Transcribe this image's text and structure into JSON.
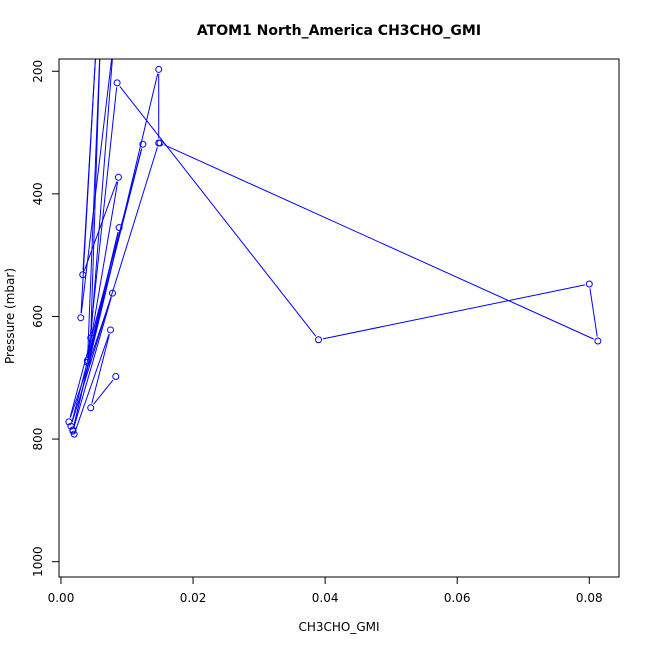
{
  "chart_data": {
    "type": "line",
    "title": "ATOM1 North_America CH3CHO_GMI",
    "xlabel": "CH3CHO_GMI",
    "ylabel": "Pressure (mbar)",
    "xlim": [
      -0.0003,
      0.0845
    ],
    "ylim": [
      1025,
      180
    ],
    "y_reversed": true,
    "x_ticks": [
      0.0,
      0.02,
      0.04,
      0.06,
      0.08
    ],
    "x_tick_labels": [
      "0.00",
      "0.02",
      "0.04",
      "0.06",
      "0.08"
    ],
    "y_ticks": [
      200,
      400,
      600,
      800,
      1000
    ],
    "y_tick_labels": [
      "200",
      "400",
      "600",
      "800",
      "1000"
    ],
    "grid": false,
    "series": [
      {
        "color": "#0000ff",
        "x": [
          0.0083,
          0.0045,
          0.0075,
          0.002,
          0.0018,
          0.0148,
          0.0148,
          0.0015,
          0.0124,
          0.0012,
          0.0078,
          0.0018,
          0.0088,
          0.004,
          0.0087,
          0.0033,
          0.0055,
          0.003,
          0.008,
          0.0045,
          0.006,
          0.004,
          0.0085,
          0.039,
          0.08,
          0.0813,
          0.015
        ],
        "y": [
          698,
          749,
          622,
          792,
          785,
          197,
          317,
          779,
          319,
          772,
          562,
          787,
          455,
          672,
          373,
          532,
          125,
          602,
          150,
          635,
          140,
          675,
          219,
          638,
          547,
          640,
          317
        ]
      }
    ]
  }
}
